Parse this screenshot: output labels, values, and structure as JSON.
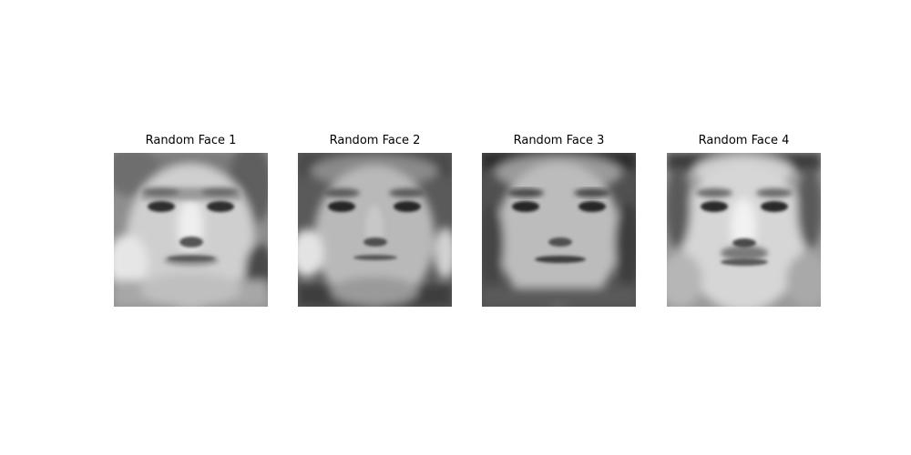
{
  "figure": {
    "panels": [
      {
        "title": "Random Face 1"
      },
      {
        "title": "Random Face 2"
      },
      {
        "title": "Random Face 3"
      },
      {
        "title": "Random Face 4"
      }
    ]
  }
}
